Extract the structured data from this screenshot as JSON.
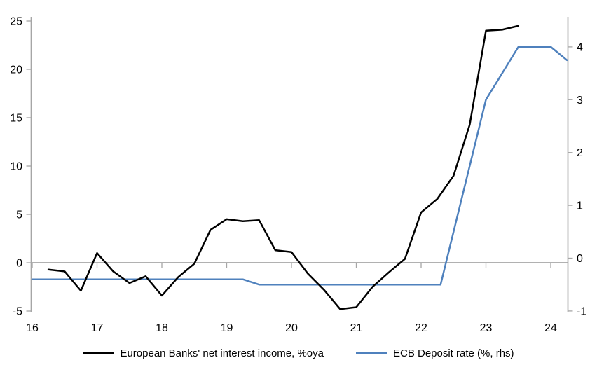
{
  "chart_data": {
    "type": "line",
    "title": "",
    "xlabel": "",
    "ylabel_left": "",
    "ylabel_right": "",
    "x_axis": {
      "ticks": [
        16,
        17,
        18,
        19,
        20,
        21,
        22,
        23,
        24
      ],
      "range": [
        16,
        24.27
      ]
    },
    "left_axis": {
      "ticks": [
        -5,
        0,
        5,
        10,
        15,
        20,
        25
      ],
      "range": [
        -5,
        25
      ]
    },
    "right_axis": {
      "ticks": [
        -1,
        0,
        1,
        2,
        3,
        4
      ],
      "range": [
        -1,
        4.5
      ]
    },
    "grid": "zero-line-only",
    "legend_position": "bottom",
    "series": [
      {
        "name": "European Banks' net interest income, %oya",
        "axis": "left",
        "color": "#000000",
        "x": [
          16.25,
          16.5,
          16.75,
          17.0,
          17.25,
          17.5,
          17.75,
          18.0,
          18.25,
          18.5,
          18.75,
          19.0,
          19.25,
          19.5,
          19.75,
          20.0,
          20.25,
          20.5,
          20.75,
          21.0,
          21.25,
          21.5,
          21.75,
          22.0,
          22.25,
          22.5,
          22.75,
          23.0,
          23.25,
          23.5
        ],
        "y": [
          -0.7,
          -0.9,
          -2.9,
          1.0,
          -0.9,
          -2.1,
          -1.4,
          -3.4,
          -1.5,
          -0.1,
          3.4,
          4.5,
          4.3,
          4.4,
          1.3,
          1.1,
          -1.1,
          -2.8,
          -4.8,
          -4.6,
          -2.5,
          -1.0,
          0.4,
          5.2,
          6.6,
          9.0,
          14.3,
          24.0,
          24.1,
          24.5
        ]
      },
      {
        "name": "ECB Deposit rate (%, rhs)",
        "axis": "right",
        "color": "#4F81BD",
        "x": [
          16.0,
          19.25,
          19.5,
          22.3,
          23.0,
          23.5,
          24.0,
          24.25
        ],
        "y": [
          -0.4,
          -0.4,
          -0.5,
          -0.5,
          3.0,
          4.0,
          4.0,
          3.75
        ]
      }
    ]
  },
  "colors": {
    "axis_gray": "#A6A6A6",
    "text": "#000000",
    "nii_line": "#000000",
    "ecb_line": "#4F81BD"
  }
}
